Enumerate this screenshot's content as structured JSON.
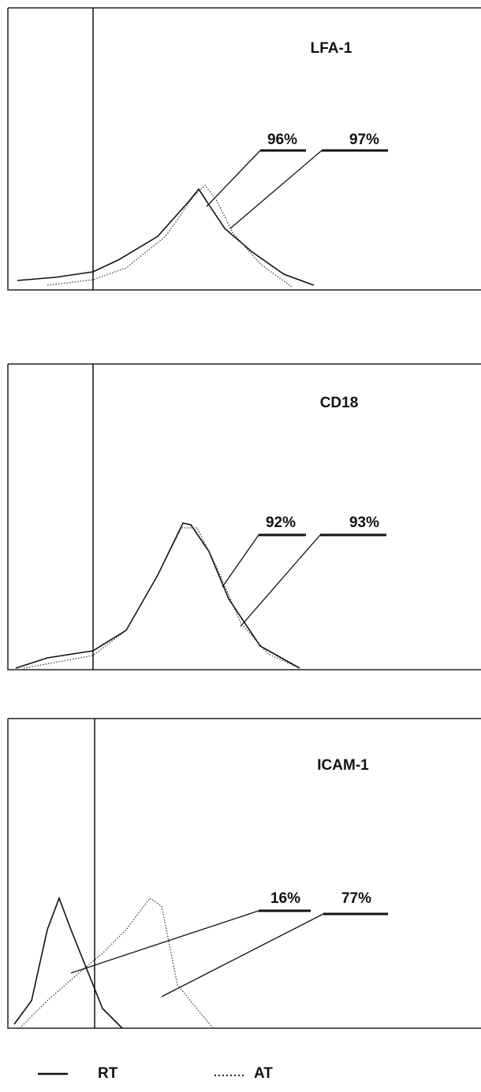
{
  "panels": [
    {
      "title": "LFA-1",
      "labels": [
        "96%",
        "97%"
      ]
    },
    {
      "title": "CD18",
      "labels": [
        "92%",
        "93%"
      ]
    },
    {
      "title": "ICAM-1",
      "labels": [
        "16%",
        "77%"
      ]
    }
  ],
  "legend": [
    "RT",
    "AT"
  ]
}
